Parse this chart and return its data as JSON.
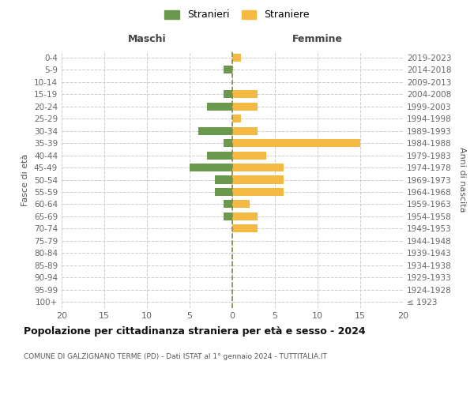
{
  "age_groups": [
    "100+",
    "95-99",
    "90-94",
    "85-89",
    "80-84",
    "75-79",
    "70-74",
    "65-69",
    "60-64",
    "55-59",
    "50-54",
    "45-49",
    "40-44",
    "35-39",
    "30-34",
    "25-29",
    "20-24",
    "15-19",
    "10-14",
    "5-9",
    "0-4"
  ],
  "birth_years": [
    "≤ 1923",
    "1924-1928",
    "1929-1933",
    "1934-1938",
    "1939-1943",
    "1944-1948",
    "1949-1953",
    "1954-1958",
    "1959-1963",
    "1964-1968",
    "1969-1973",
    "1974-1978",
    "1979-1983",
    "1984-1988",
    "1989-1993",
    "1994-1998",
    "1999-2003",
    "2004-2008",
    "2009-2013",
    "2014-2018",
    "2019-2023"
  ],
  "maschi": [
    0,
    0,
    0,
    0,
    0,
    0,
    0,
    1,
    1,
    2,
    2,
    5,
    3,
    1,
    4,
    0,
    3,
    1,
    0,
    1,
    0
  ],
  "femmine": [
    0,
    0,
    0,
    0,
    0,
    0,
    3,
    3,
    2,
    6,
    6,
    6,
    4,
    15,
    3,
    1,
    3,
    3,
    0,
    0,
    1
  ],
  "color_maschi": "#6a994e",
  "color_femmine": "#f4b942",
  "title": "Popolazione per cittadinanza straniera per età e sesso - 2024",
  "subtitle": "COMUNE DI GALZIGNANO TERME (PD) - Dati ISTAT al 1° gennaio 2024 - TUTTITALIA.IT",
  "xlabel_left": "Maschi",
  "xlabel_right": "Femmine",
  "ylabel_left": "Fasce di età",
  "ylabel_right": "Anni di nascita",
  "xlim": 20,
  "legend_maschi": "Stranieri",
  "legend_femmine": "Straniere",
  "background_color": "#ffffff",
  "grid_color": "#cccccc"
}
